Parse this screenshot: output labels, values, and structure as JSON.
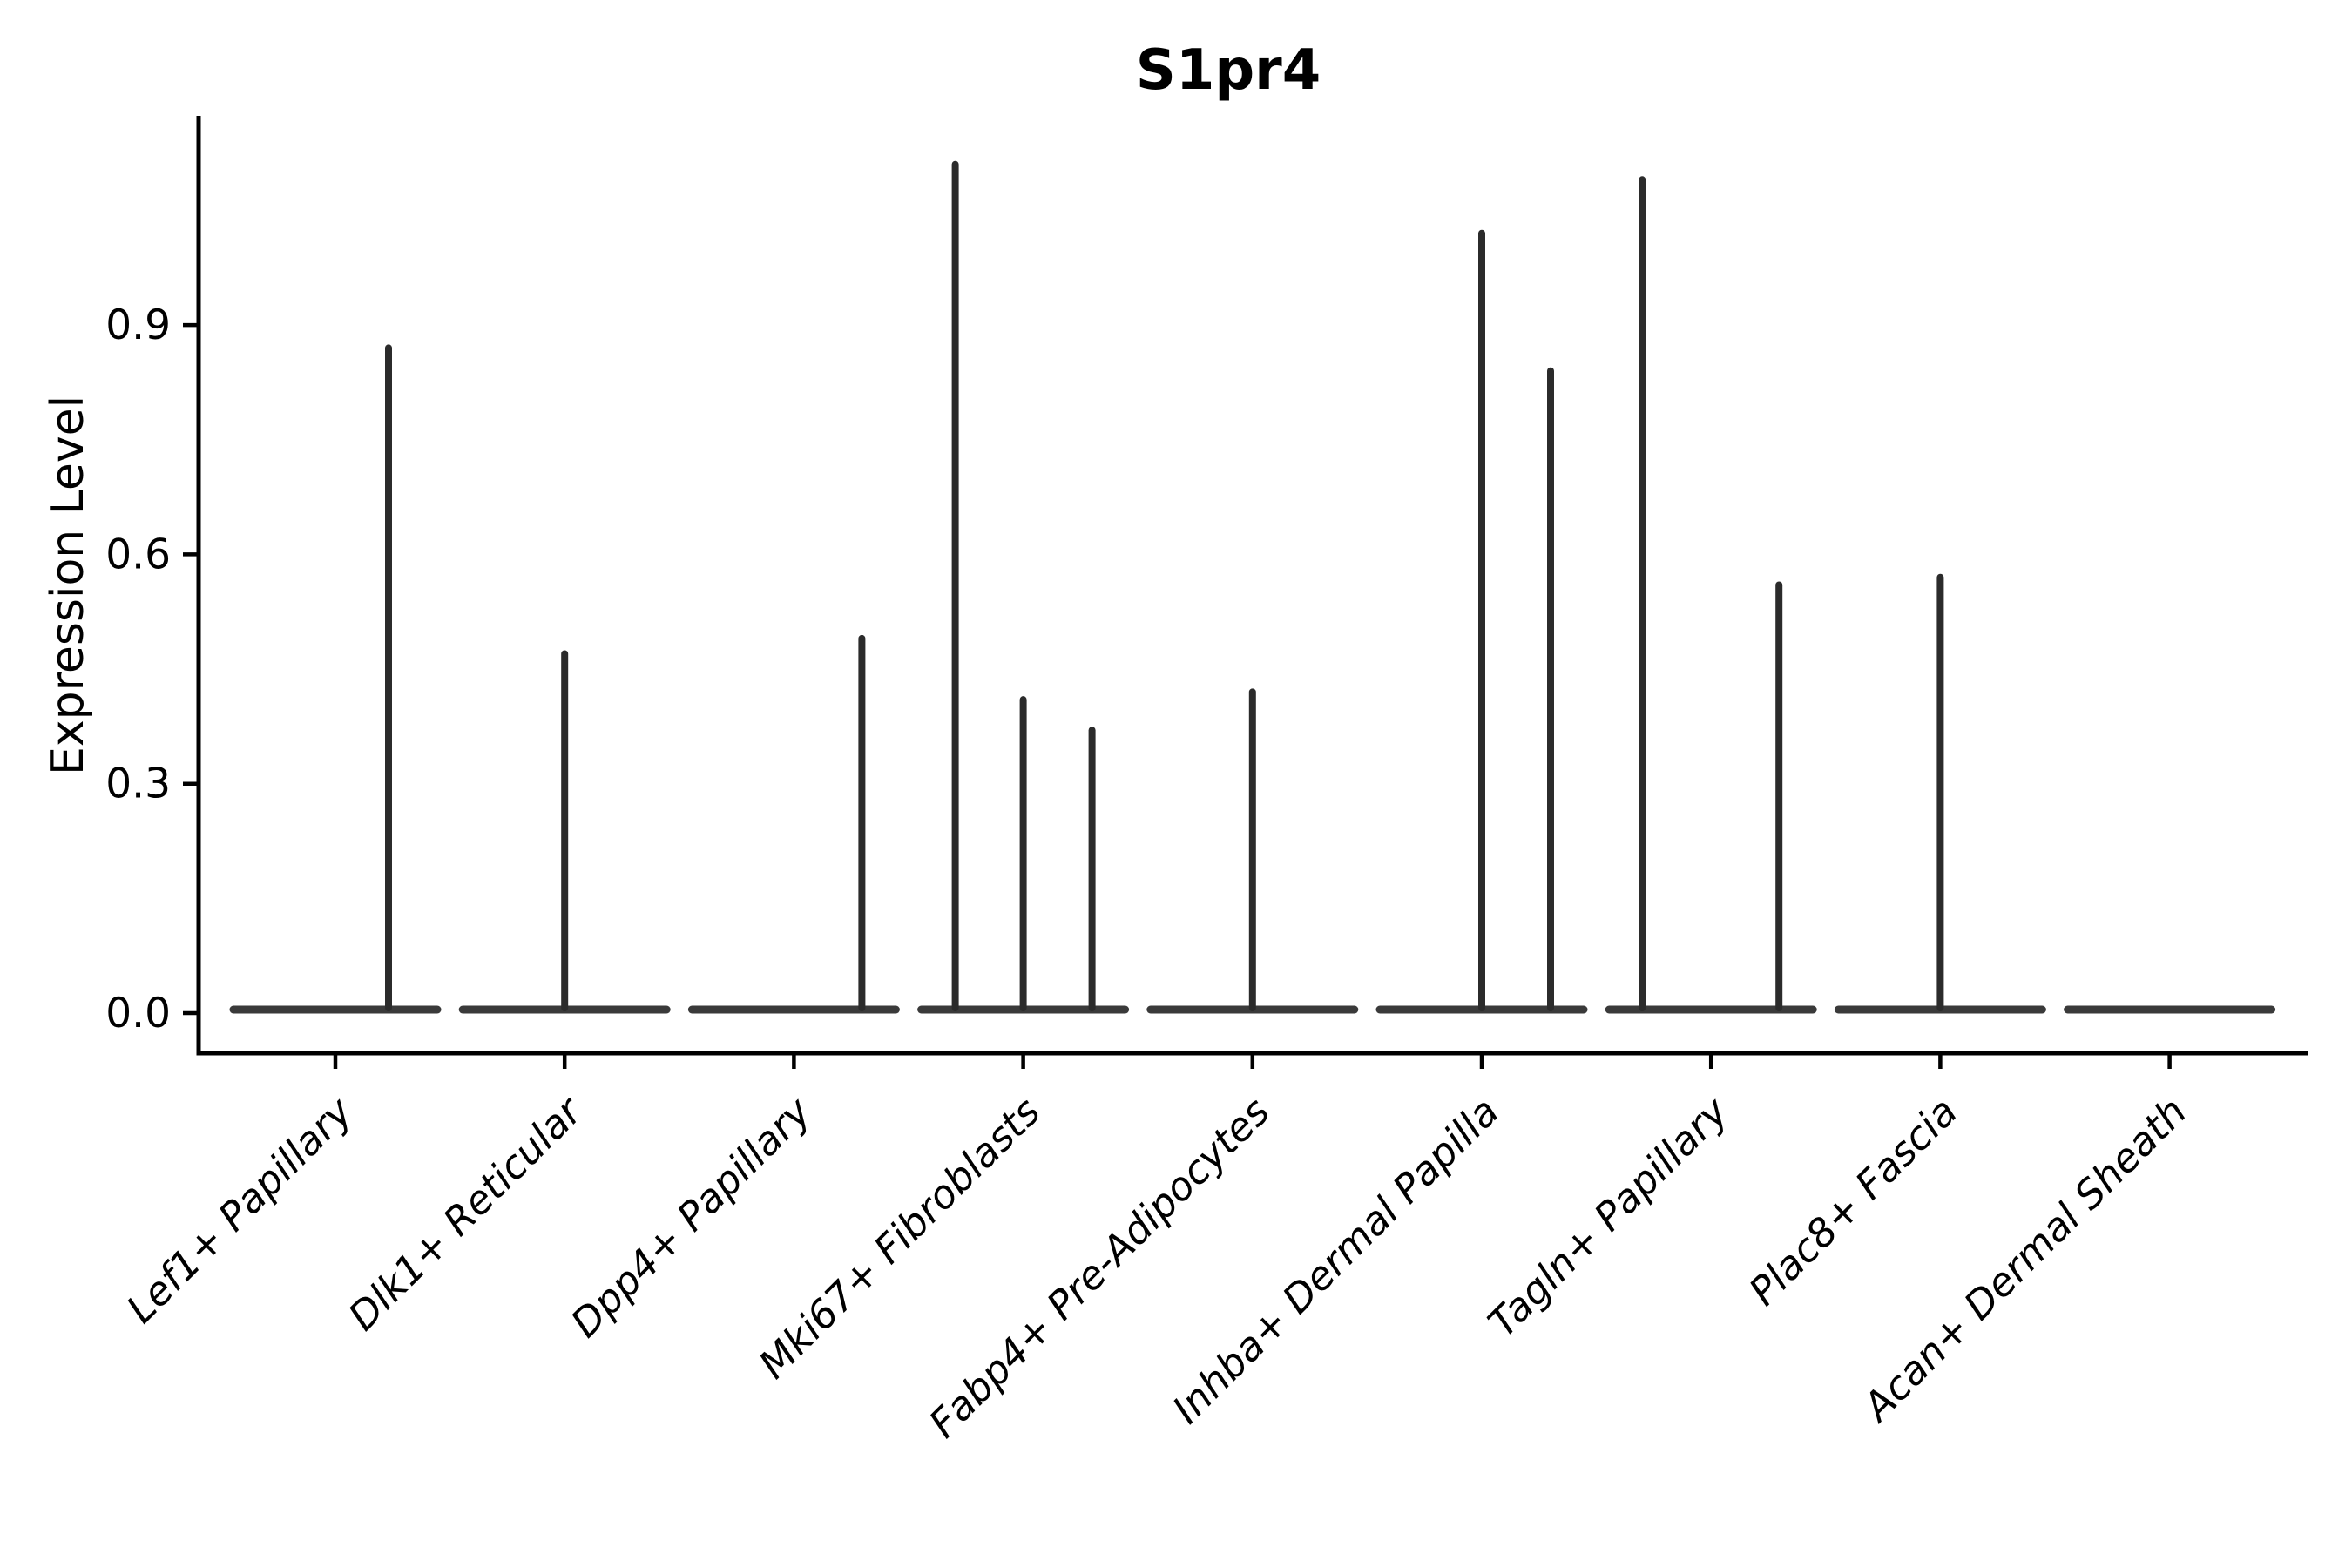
{
  "page": {
    "background": "#ffffff"
  },
  "title": {
    "text": "S1pr4"
  },
  "y_axis": {
    "label": "Expression Level"
  },
  "colors": {
    "violin_line": "#2b2b2b",
    "violin_body": "#3a3a3a",
    "axis": "#000000",
    "text": "#000000",
    "background": "#ffffff"
  },
  "chart_data": {
    "type": "violin",
    "title": "S1pr4",
    "xlabel": "",
    "ylabel": "Expression Level",
    "ylim": [
      0,
      1.17
    ],
    "y_ticks": [
      "0.0",
      "0.3",
      "0.6",
      "0.9"
    ],
    "y_tick_values": [
      0.0,
      0.3,
      0.6,
      0.9
    ],
    "grid": false,
    "legend": false,
    "x_tick_rotation_deg": 45,
    "categories": [
      "Lef1+ Papillary",
      "Dlk1+ Reticular",
      "Dpp4+ Papillary",
      "Mki67+ Fibroblasts",
      "Fabp4+ Pre-Adipocytes",
      "Inhba+ Dermal Papilla",
      "Tagln+ Papillary",
      "Plac8+ Fascia",
      "Acan+ Dermal Sheath"
    ],
    "max_values": [
      0.87,
      0.47,
      0.49,
      1.11,
      0.42,
      1.02,
      1.09,
      0.57,
      0
    ],
    "series": [
      {
        "category": "Lef1+ Papillary",
        "spikes": [
          {
            "dx": 61,
            "value": 0.87
          }
        ]
      },
      {
        "category": "Dlk1+ Reticular",
        "spikes": [
          {
            "dx": 0,
            "value": 0.47
          }
        ]
      },
      {
        "category": "Dpp4+ Papillary",
        "spikes": [
          {
            "dx": 78,
            "value": 0.49
          }
        ]
      },
      {
        "category": "Mki67+ Fibroblasts",
        "spikes": [
          {
            "dx": -78,
            "value": 1.11
          },
          {
            "dx": 0,
            "value": 0.41
          },
          {
            "dx": 79,
            "value": 0.37
          }
        ]
      },
      {
        "category": "Fabp4+ Pre-Adipocytes",
        "spikes": [
          {
            "dx": 0,
            "value": 0.42
          }
        ]
      },
      {
        "category": "Inhba+ Dermal Papilla",
        "spikes": [
          {
            "dx": 0,
            "value": 1.02
          },
          {
            "dx": 79,
            "value": 0.84
          }
        ]
      },
      {
        "category": "Tagln+ Papillary",
        "spikes": [
          {
            "dx": -79,
            "value": 1.09
          },
          {
            "dx": 78,
            "value": 0.56
          }
        ]
      },
      {
        "category": "Plac8+ Fascia",
        "spikes": [
          {
            "dx": 0,
            "value": 0.57
          }
        ]
      },
      {
        "category": "Acan+ Dermal Sheath",
        "spikes": []
      }
    ]
  }
}
